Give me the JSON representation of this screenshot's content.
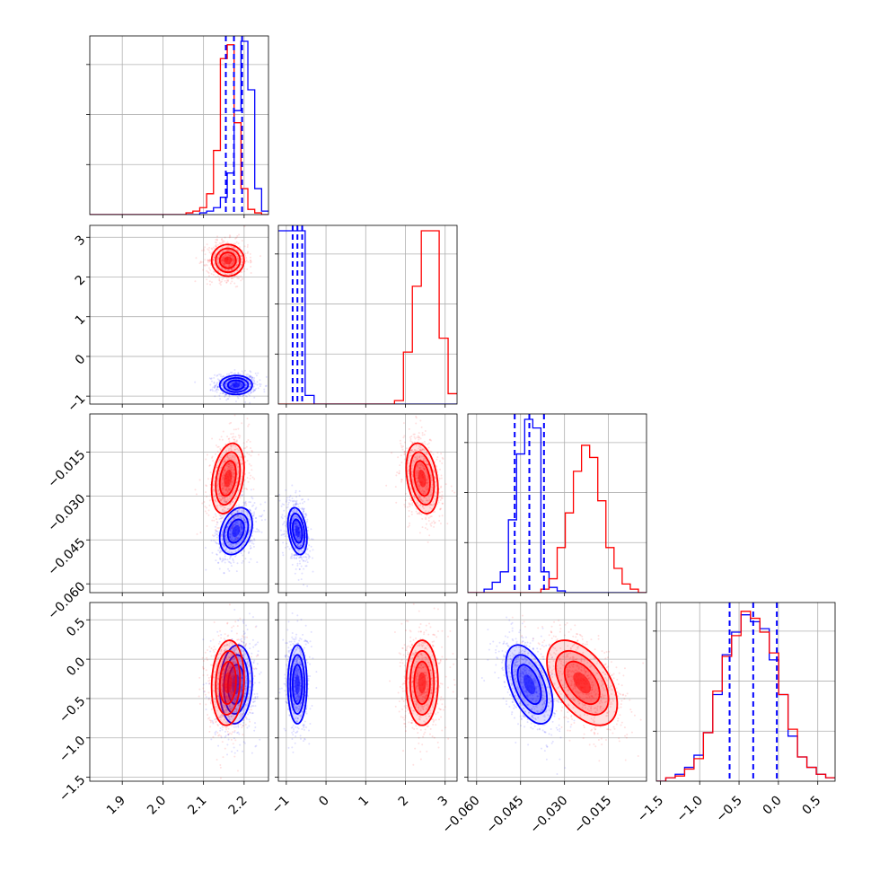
{
  "chart_data": {
    "type": "corner",
    "title": "",
    "legend": "none",
    "grid": true,
    "colors": {
      "series_a": "#0000ff",
      "series_b": "#ff0000",
      "median_lines": "#0000ff"
    },
    "series": [
      {
        "color": "#0000ff",
        "means": [
          2.18,
          -0.72,
          -0.042,
          -0.32
        ],
        "sigmas": [
          0.02,
          0.12,
          0.004,
          0.25
        ],
        "corr": [
          [
            1,
            0,
            0.3,
            0.1
          ],
          [
            0,
            1,
            -0.3,
            0
          ],
          [
            0.3,
            -0.3,
            1,
            -0.5
          ],
          [
            0.1,
            0,
            -0.5,
            1
          ]
        ]
      },
      {
        "color": "#ff0000",
        "means": [
          2.16,
          2.42,
          -0.024,
          -0.3
        ],
        "sigmas": [
          0.02,
          0.2,
          0.006,
          0.27
        ],
        "corr": [
          [
            1,
            0,
            0.3,
            0.1
          ],
          [
            0,
            1,
            -0.3,
            0
          ],
          [
            0.3,
            -0.3,
            1,
            -0.5
          ],
          [
            0.1,
            0,
            -0.5,
            1
          ]
        ]
      }
    ],
    "parameters": [
      {
        "range": [
          1.82,
          2.26
        ],
        "ticks": [
          1.9,
          2.0,
          2.1,
          2.2
        ],
        "tick_labels": [
          "1.9",
          "2.0",
          "2.1",
          "2.2"
        ],
        "quantiles": [
          2.155,
          2.175,
          2.195
        ],
        "hist_blue": [
          0,
          0,
          0,
          0,
          0,
          0,
          0,
          0,
          0,
          0,
          0,
          0,
          0,
          0,
          0,
          0,
          0.01,
          0.02,
          0.04,
          0.1,
          0.24,
          0.6,
          1.0,
          0.72,
          0.15,
          0.02
        ],
        "hist_red": [
          0,
          0,
          0,
          0,
          0,
          0,
          0,
          0,
          0,
          0,
          0,
          0,
          0,
          0,
          0.01,
          0.02,
          0.04,
          0.12,
          0.37,
          0.9,
          0.98,
          0.53,
          0.15,
          0.03,
          0.01,
          0
        ]
      },
      {
        "range": [
          -1.2,
          3.3
        ],
        "ticks": [
          -1,
          0,
          1,
          2,
          3
        ],
        "tick_labels": [
          "−1",
          "0",
          "1",
          "2",
          "3"
        ],
        "quantiles": [
          -0.84,
          -0.72,
          -0.6
        ],
        "hist_blue": [
          1.0,
          1.0,
          1.0,
          0.05,
          0,
          0,
          0,
          0,
          0,
          0,
          0,
          0,
          0,
          0,
          0,
          0,
          0,
          0,
          0,
          0
        ],
        "hist_red": [
          0,
          0,
          0,
          0,
          0,
          0,
          0,
          0,
          0,
          0,
          0,
          0,
          0,
          0.02,
          0.3,
          0.68,
          1.0,
          1.0,
          0.38,
          0.06
        ]
      },
      {
        "range": [
          -0.063,
          -0.002
        ],
        "ticks": [
          -0.06,
          -0.045,
          -0.03,
          -0.015
        ],
        "tick_labels": [
          "−0.060",
          "−0.045",
          "−0.030",
          "−0.015"
        ],
        "quantiles": [
          -0.047,
          -0.042,
          -0.037
        ],
        "hist_blue": [
          0,
          0,
          0.02,
          0.06,
          0.12,
          0.42,
          0.8,
          1.0,
          0.95,
          0.12,
          0.03,
          0.01,
          0,
          0,
          0,
          0,
          0,
          0,
          0,
          0,
          0,
          0
        ],
        "hist_red": [
          0,
          0,
          0,
          0,
          0,
          0,
          0,
          0,
          0,
          0.02,
          0.08,
          0.26,
          0.46,
          0.7,
          0.85,
          0.78,
          0.53,
          0.26,
          0.14,
          0.05,
          0.02,
          0
        ]
      },
      {
        "range": [
          -1.55,
          0.72
        ],
        "ticks": [
          -1.5,
          -1.0,
          -0.5,
          0.0,
          0.5
        ],
        "tick_labels": [
          "−1.5",
          "−1.0",
          "−0.5",
          "0.0",
          "0.5"
        ],
        "quantiles": [
          -0.62,
          -0.32,
          -0.02
        ],
        "hist_blue": [
          0,
          0.02,
          0.04,
          0.08,
          0.15,
          0.28,
          0.5,
          0.73,
          0.86,
          0.96,
          0.92,
          0.88,
          0.7,
          0.5,
          0.26,
          0.14,
          0.08,
          0.04,
          0.02
        ],
        "hist_red": [
          0,
          0.02,
          0.03,
          0.07,
          0.13,
          0.28,
          0.52,
          0.72,
          0.84,
          0.98,
          0.94,
          0.86,
          0.74,
          0.5,
          0.3,
          0.14,
          0.08,
          0.04,
          0.02
        ]
      }
    ]
  }
}
